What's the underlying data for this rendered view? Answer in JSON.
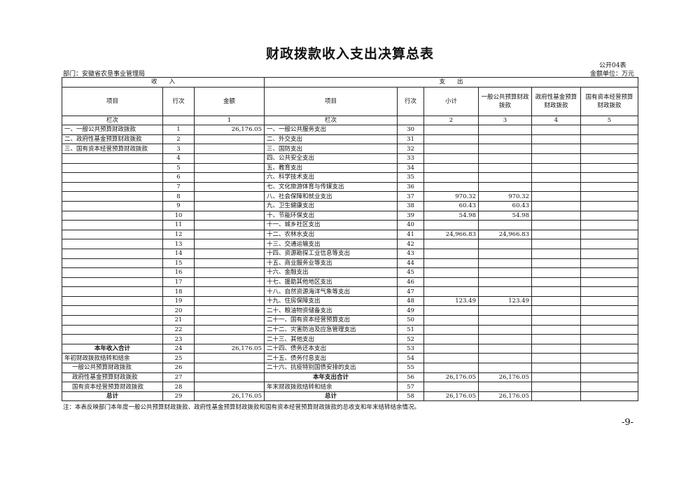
{
  "title": "财政拨款收入支出决算总表",
  "form_no": "公开04表",
  "department": "部门：安徽省农垦事业管理局",
  "unit": "金额单位：万元",
  "headers": {
    "income": "收　　入",
    "expense": "支　　出",
    "item": "项目",
    "line": "行次",
    "amount": "金额",
    "item2": "项目",
    "line2": "行次",
    "subtotal": "小计",
    "general": "一般公共预算财政拨款",
    "gov_fund": "政府性基金预算财政拨款",
    "state_capital": "国有资本经营预算财政拨款"
  },
  "col_index": {
    "label": "栏次",
    "c1": "1",
    "label2": "栏次",
    "c2": "2",
    "c3": "3",
    "c4": "4",
    "c5": "5"
  },
  "rows": [
    [
      "一、一般公共预算财政拨款",
      "1",
      "26,176.05",
      "一、一般公共服务支出",
      "30",
      "",
      "",
      "",
      ""
    ],
    [
      "二、政府性基金预算财政拨款",
      "2",
      "",
      "二、外交支出",
      "31",
      "",
      "",
      "",
      ""
    ],
    [
      "三、国有资本经营预算财政拨款",
      "3",
      "",
      "三、国防支出",
      "32",
      "",
      "",
      "",
      ""
    ],
    [
      "",
      "4",
      "",
      "四、公共安全支出",
      "33",
      "",
      "",
      "",
      ""
    ],
    [
      "",
      "5",
      "",
      "五、教育支出",
      "34",
      "",
      "",
      "",
      ""
    ],
    [
      "",
      "6",
      "",
      "六、科学技术支出",
      "35",
      "",
      "",
      "",
      ""
    ],
    [
      "",
      "7",
      "",
      "七、文化旅游体育与传媒支出",
      "36",
      "",
      "",
      "",
      ""
    ],
    [
      "",
      "8",
      "",
      "八、社会保障和就业支出",
      "37",
      "970.32",
      "970.32",
      "",
      ""
    ],
    [
      "",
      "9",
      "",
      "九、卫生健康支出",
      "38",
      "60.43",
      "60.43",
      "",
      ""
    ],
    [
      "",
      "10",
      "",
      "十、节能环保支出",
      "39",
      "54.98",
      "54.98",
      "",
      ""
    ],
    [
      "",
      "11",
      "",
      "十一、城乡社区支出",
      "40",
      "",
      "",
      "",
      ""
    ],
    [
      "",
      "12",
      "",
      "十二、农林水支出",
      "41",
      "24,966.83",
      "24,966.83",
      "",
      ""
    ],
    [
      "",
      "13",
      "",
      "十三、交通运输支出",
      "42",
      "",
      "",
      "",
      ""
    ],
    [
      "",
      "14",
      "",
      "十四、资源勘探工业信息等支出",
      "43",
      "",
      "",
      "",
      ""
    ],
    [
      "",
      "15",
      "",
      "十五、商业服务业等支出",
      "44",
      "",
      "",
      "",
      ""
    ],
    [
      "",
      "16",
      "",
      "十六、金融支出",
      "45",
      "",
      "",
      "",
      ""
    ],
    [
      "",
      "17",
      "",
      "十七、援助其他地区支出",
      "46",
      "",
      "",
      "",
      ""
    ],
    [
      "",
      "18",
      "",
      "十八、自然资源海洋气象等支出",
      "47",
      "",
      "",
      "",
      ""
    ],
    [
      "",
      "19",
      "",
      "十九、住房保障支出",
      "48",
      "123.49",
      "123.49",
      "",
      ""
    ],
    [
      "",
      "20",
      "",
      "二十、粮油物资储备支出",
      "49",
      "",
      "",
      "",
      ""
    ],
    [
      "",
      "21",
      "",
      "二十一、国有资本经营预算支出",
      "50",
      "",
      "",
      "",
      ""
    ],
    [
      "",
      "22",
      "",
      "二十二、灾害防治及应急管理支出",
      "51",
      "",
      "",
      "",
      ""
    ],
    [
      "",
      "23",
      "",
      "二十三、其他支出",
      "52",
      "",
      "",
      "",
      ""
    ],
    [
      "本年收入合计",
      "24",
      "26,176.05",
      "二十四、债务还本支出",
      "53",
      "",
      "",
      "",
      ""
    ],
    [
      "年初财政拨款结转和结余",
      "25",
      "",
      "二十五、债务付息支出",
      "54",
      "",
      "",
      "",
      ""
    ],
    [
      "一般公共预算财政拨款",
      "26",
      "",
      "二十六、抗疫特别国债安排的支出",
      "55",
      "",
      "",
      "",
      ""
    ],
    [
      "政府性基金预算财政拨款",
      "27",
      "",
      "本年支出合计",
      "56",
      "26,176.05",
      "26,176.05",
      "",
      ""
    ],
    [
      "国有资本经营预算财政拨款",
      "28",
      "",
      "年末财政拨款结转和结余",
      "57",
      "",
      "",
      "",
      ""
    ],
    [
      "总计",
      "29",
      "26,176.05",
      "总计",
      "58",
      "26,176.05",
      "26,176.05",
      "",
      ""
    ]
  ],
  "note": "注：本表反映部门本年度一般公共预算财政拨款、政府性基金预算财政拨款和国有资本经营预算财政拨款的总收支和年末结转结余情况。",
  "page_number": "-9-"
}
